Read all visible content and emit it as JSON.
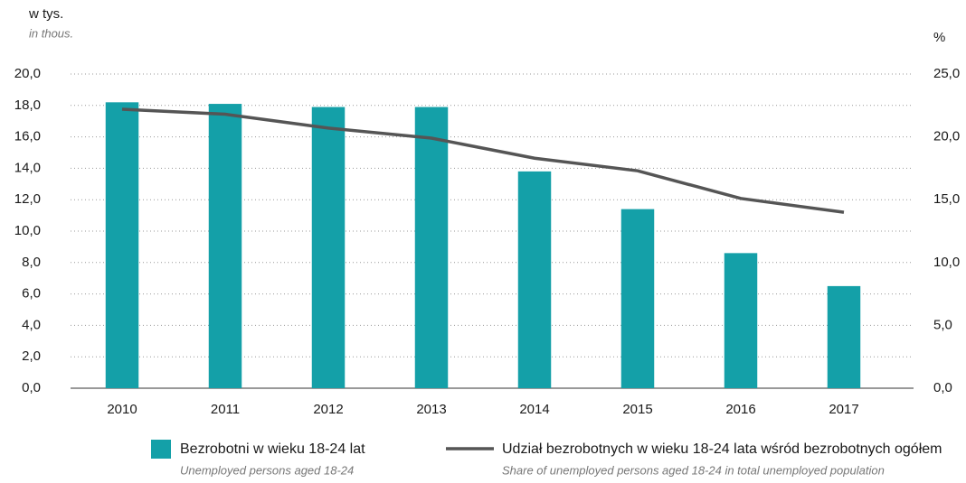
{
  "chart_data": {
    "type": "bar_line",
    "y_axis_title": "w tys.",
    "y_axis_subtitle": "in thous.",
    "y2_axis_title": "%",
    "categories": [
      "2010",
      "2011",
      "2012",
      "2013",
      "2014",
      "2015",
      "2016",
      "2017"
    ],
    "series": [
      {
        "name": "Bezrobotni w wieku 18-24 lat",
        "subtitle": "Unemployed persons aged 18-24",
        "type": "bar",
        "color": "#14a0a8",
        "values": [
          18.2,
          18.1,
          17.9,
          17.9,
          13.8,
          11.4,
          8.6,
          6.5
        ]
      },
      {
        "name": "Udział bezrobotnych w wieku 18-24 lata wśród bezrobotnych ogółem",
        "subtitle": "Share of unemployed persons aged 18-24 in total unemployed population",
        "type": "line",
        "axis": "y2",
        "color": "#555555",
        "values": [
          22.2,
          21.8,
          20.7,
          19.9,
          18.3,
          17.3,
          15.1,
          14.0
        ]
      }
    ],
    "ylim": [
      0,
      20
    ],
    "yticks": [
      {
        "value": 0,
        "label": "0,0"
      },
      {
        "value": 2,
        "label": "2,0"
      },
      {
        "value": 4,
        "label": "4,0"
      },
      {
        "value": 6,
        "label": "6,0"
      },
      {
        "value": 8,
        "label": "8,0"
      },
      {
        "value": 10,
        "label": "10,0"
      },
      {
        "value": 12,
        "label": "12,0"
      },
      {
        "value": 14,
        "label": "14,0"
      },
      {
        "value": 16,
        "label": "16,0"
      },
      {
        "value": 18,
        "label": "18,0"
      },
      {
        "value": 20,
        "label": "20,0"
      }
    ],
    "y2lim": [
      0,
      25
    ],
    "y2ticks": [
      {
        "value": 0,
        "label": "0,0"
      },
      {
        "value": 5,
        "label": "5,0"
      },
      {
        "value": 10,
        "label": "10,0"
      },
      {
        "value": 15,
        "label": "15,0"
      },
      {
        "value": 20,
        "label": "20,0"
      },
      {
        "value": 25,
        "label": "25,0"
      }
    ],
    "grid": true
  }
}
